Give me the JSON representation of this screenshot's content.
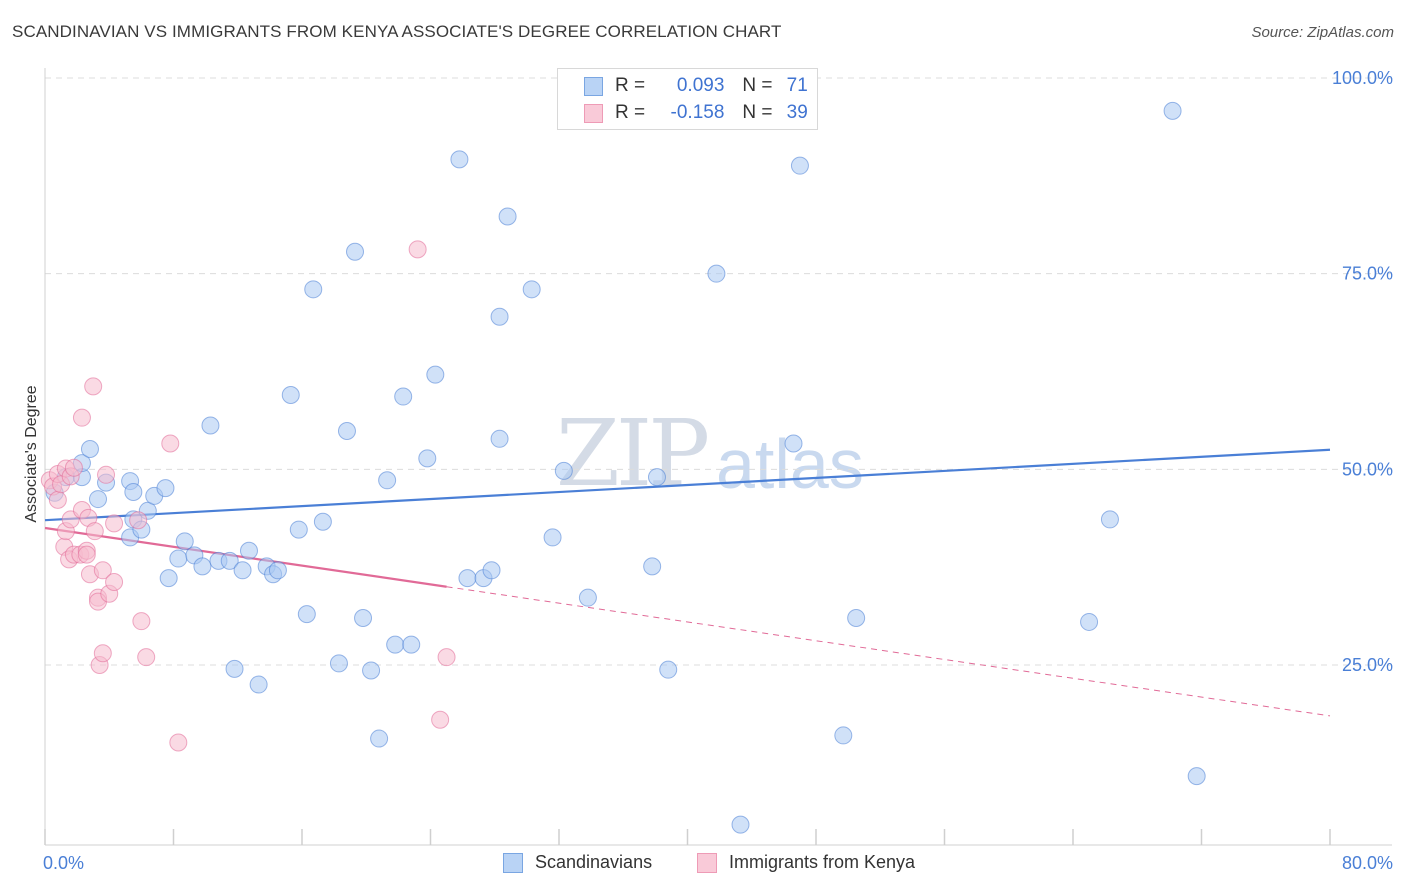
{
  "title": "SCANDINAVIAN VS IMMIGRANTS FROM KENYA ASSOCIATE'S DEGREE CORRELATION CHART",
  "source": "Source: ZipAtlas.com",
  "watermark": {
    "zip": "ZIP",
    "atlas": "atlas"
  },
  "legend": {
    "rows": [
      {
        "r_label": "R =",
        "r_value": "0.093",
        "n_label": "N =",
        "n_value": "71",
        "color": "#a9c8f2"
      },
      {
        "r_label": "R =",
        "r_value": "-0.158",
        "n_label": "N =",
        "n_value": "39",
        "color": "#f6bccd"
      }
    ]
  },
  "bottom_legend": [
    "Scandinavians",
    "Immigrants from Kenya"
  ],
  "chart_data": {
    "type": "scatter",
    "title": "SCANDINAVIAN VS IMMIGRANTS FROM KENYA ASSOCIATE'S DEGREE CORRELATION CHART",
    "xlabel": "",
    "ylabel": "Associate's Degree",
    "xlim": [
      0,
      80
    ],
    "ylim": [
      2,
      100
    ],
    "x_tick_labels": [
      "0.0%",
      "80.0%"
    ],
    "y_tick_labels": [
      "100.0%",
      "75.0%",
      "50.0%",
      "25.0%"
    ],
    "y_ticks": [
      100,
      75,
      50,
      25
    ],
    "grid": true,
    "legend_position": "top-center",
    "series": [
      {
        "name": "Scandinavians",
        "color": "#4a7fd6",
        "fill": "#a9c8f2",
        "trend": {
          "x": [
            0,
            80
          ],
          "y": [
            43.5,
            52.5
          ],
          "style": "solid"
        },
        "points": [
          [
            0.6,
            47.0
          ],
          [
            1.3,
            49.0
          ],
          [
            2.3,
            49.0
          ],
          [
            2.3,
            50.8
          ],
          [
            2.8,
            52.6
          ],
          [
            3.3,
            46.2
          ],
          [
            3.8,
            48.3
          ],
          [
            5.3,
            41.3
          ],
          [
            5.5,
            43.6
          ],
          [
            5.3,
            48.5
          ],
          [
            5.5,
            47.1
          ],
          [
            6.0,
            42.3
          ],
          [
            6.4,
            44.7
          ],
          [
            6.8,
            46.6
          ],
          [
            7.5,
            47.6
          ],
          [
            7.7,
            36.1
          ],
          [
            8.3,
            38.6
          ],
          [
            8.7,
            40.8
          ],
          [
            9.3,
            39.0
          ],
          [
            9.8,
            37.6
          ],
          [
            10.3,
            55.6
          ],
          [
            10.8,
            38.3
          ],
          [
            11.5,
            38.3
          ],
          [
            11.8,
            24.5
          ],
          [
            12.3,
            37.1
          ],
          [
            12.7,
            39.6
          ],
          [
            13.3,
            22.5
          ],
          [
            13.8,
            37.6
          ],
          [
            14.2,
            36.6
          ],
          [
            14.5,
            37.1
          ],
          [
            15.3,
            59.5
          ],
          [
            15.8,
            42.3
          ],
          [
            16.3,
            31.5
          ],
          [
            16.7,
            73.0
          ],
          [
            17.3,
            43.3
          ],
          [
            18.3,
            25.2
          ],
          [
            18.8,
            54.9
          ],
          [
            19.3,
            77.8
          ],
          [
            19.8,
            31.0
          ],
          [
            20.3,
            24.3
          ],
          [
            20.8,
            15.6
          ],
          [
            21.3,
            48.6
          ],
          [
            21.8,
            27.6
          ],
          [
            22.3,
            59.3
          ],
          [
            22.8,
            27.6
          ],
          [
            23.8,
            51.4
          ],
          [
            24.3,
            62.1
          ],
          [
            25.8,
            89.6
          ],
          [
            26.3,
            36.1
          ],
          [
            27.3,
            36.1
          ],
          [
            27.8,
            37.1
          ],
          [
            28.3,
            53.9
          ],
          [
            28.3,
            69.5
          ],
          [
            28.8,
            82.3
          ],
          [
            30.3,
            73.0
          ],
          [
            31.6,
            41.3
          ],
          [
            32.3,
            49.8
          ],
          [
            33.8,
            33.6
          ],
          [
            37.8,
            37.6
          ],
          [
            38.1,
            49.0
          ],
          [
            38.8,
            24.4
          ],
          [
            41.8,
            75.0
          ],
          [
            43.3,
            4.6
          ],
          [
            46.6,
            53.3
          ],
          [
            47.0,
            88.8
          ],
          [
            49.7,
            16.0
          ],
          [
            50.5,
            31.0
          ],
          [
            66.3,
            43.6
          ],
          [
            70.2,
            95.8
          ],
          [
            71.7,
            10.8
          ],
          [
            65.0,
            30.5
          ]
        ]
      },
      {
        "name": "Immigrants from Kenya",
        "color": "#e16a97",
        "fill": "#f6bccd",
        "trend": {
          "x": [
            0,
            25
          ],
          "y": [
            42.5,
            35.0
          ],
          "style": "solid",
          "extend_to": [
            80,
            18.5
          ]
        },
        "points": [
          [
            0.3,
            48.6
          ],
          [
            0.5,
            47.8
          ],
          [
            0.8,
            49.4
          ],
          [
            0.8,
            46.1
          ],
          [
            1.0,
            48.1
          ],
          [
            1.2,
            40.1
          ],
          [
            1.3,
            50.1
          ],
          [
            1.3,
            42.1
          ],
          [
            1.5,
            38.5
          ],
          [
            1.6,
            43.6
          ],
          [
            1.6,
            49.1
          ],
          [
            1.8,
            50.2
          ],
          [
            1.8,
            39.1
          ],
          [
            2.2,
            39.1
          ],
          [
            2.3,
            44.8
          ],
          [
            2.3,
            56.6
          ],
          [
            2.6,
            39.6
          ],
          [
            2.6,
            39.1
          ],
          [
            2.8,
            36.6
          ],
          [
            2.7,
            43.8
          ],
          [
            3.0,
            60.6
          ],
          [
            3.1,
            42.1
          ],
          [
            3.3,
            33.6
          ],
          [
            3.3,
            33.1
          ],
          [
            3.4,
            25.0
          ],
          [
            3.6,
            37.1
          ],
          [
            3.6,
            26.5
          ],
          [
            3.8,
            49.3
          ],
          [
            4.0,
            34.1
          ],
          [
            4.3,
            35.6
          ],
          [
            4.3,
            43.1
          ],
          [
            5.8,
            43.5
          ],
          [
            6.0,
            30.6
          ],
          [
            6.3,
            26.0
          ],
          [
            7.8,
            53.3
          ],
          [
            8.3,
            15.1
          ],
          [
            23.2,
            78.1
          ],
          [
            24.6,
            18.0
          ],
          [
            25.0,
            26.0
          ]
        ]
      }
    ]
  }
}
